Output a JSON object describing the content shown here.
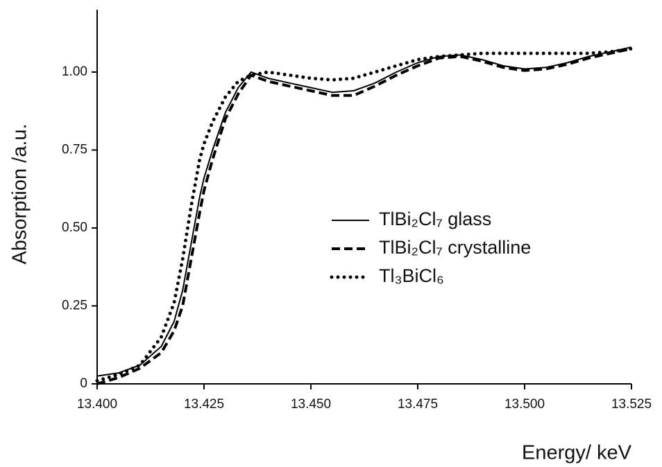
{
  "chart_data": {
    "type": "line",
    "x_label": "Energy/ keV",
    "y_label": "Absorption /a.u.",
    "x": [
      13.4,
      13.405,
      13.41,
      13.415,
      13.418,
      13.42,
      13.422,
      13.424,
      13.425,
      13.427,
      13.43,
      13.433,
      13.436,
      13.44,
      13.445,
      13.45,
      13.455,
      13.46,
      13.465,
      13.47,
      13.475,
      13.48,
      13.485,
      13.49,
      13.495,
      13.5,
      13.505,
      13.51,
      13.515,
      13.52,
      13.525
    ],
    "series": [
      {
        "name": "TlBi₂Cl₇ glass",
        "color": "#000000",
        "dash": "solid",
        "values": [
          0.025,
          0.035,
          0.06,
          0.12,
          0.2,
          0.3,
          0.45,
          0.6,
          0.66,
          0.75,
          0.87,
          0.95,
          1.0,
          0.98,
          0.965,
          0.95,
          0.935,
          0.94,
          0.965,
          1.0,
          1.03,
          1.05,
          1.055,
          1.04,
          1.02,
          1.01,
          1.015,
          1.03,
          1.05,
          1.065,
          1.08
        ]
      },
      {
        "name": "TlBi₂Cl₇ crystalline",
        "color": "#000000",
        "dash": "dashed",
        "values": [
          0.0,
          0.02,
          0.05,
          0.1,
          0.17,
          0.25,
          0.4,
          0.55,
          0.62,
          0.72,
          0.85,
          0.93,
          0.99,
          0.97,
          0.955,
          0.94,
          0.925,
          0.925,
          0.955,
          0.99,
          1.02,
          1.045,
          1.05,
          1.035,
          1.015,
          1.005,
          1.01,
          1.025,
          1.045,
          1.06,
          1.075
        ]
      },
      {
        "name": "Tl₃BiCl₆",
        "color": "#000000",
        "dash": "dotted",
        "values": [
          0.01,
          0.03,
          0.06,
          0.15,
          0.26,
          0.4,
          0.57,
          0.72,
          0.77,
          0.84,
          0.92,
          0.97,
          0.99,
          1.0,
          0.99,
          0.98,
          0.975,
          0.98,
          1.0,
          1.02,
          1.04,
          1.05,
          1.055,
          1.06,
          1.06,
          1.06,
          1.06,
          1.06,
          1.06,
          1.065,
          1.075
        ]
      }
    ],
    "xlim": [
      13.4,
      13.525
    ],
    "xticks": [
      {
        "value": 13.4,
        "label": "13.400"
      },
      {
        "value": 13.425,
        "label": "13.425"
      },
      {
        "value": 13.45,
        "label": "13.450"
      },
      {
        "value": 13.475,
        "label": "13.475"
      },
      {
        "value": 13.5,
        "label": "13.500"
      },
      {
        "value": 13.525,
        "label": "13.525"
      }
    ],
    "ylim": [
      0,
      1.2
    ],
    "yticks": [
      0,
      0.25,
      {
        "value": 0.5,
        "label": "0.50"
      },
      0.75,
      {
        "value": 1,
        "label": "1.00"
      }
    ],
    "grid": false
  }
}
